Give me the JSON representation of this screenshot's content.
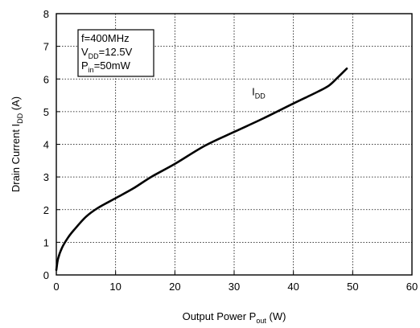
{
  "chart_data": {
    "type": "line",
    "xlabel": {
      "main": "Output Power P",
      "sub": "out",
      "unit": " (W)"
    },
    "ylabel": {
      "main": "Drain Current I",
      "sub": "DD",
      "unit": " (A)"
    },
    "xlim": [
      0,
      60
    ],
    "ylim": [
      0,
      8
    ],
    "x_ticks": [
      0,
      10,
      20,
      30,
      40,
      50,
      60
    ],
    "y_ticks": [
      0,
      1,
      2,
      3,
      4,
      5,
      6,
      7,
      8
    ],
    "grid": true,
    "conditions": [
      {
        "main": "f=400MHz",
        "sub": "",
        "tail": ""
      },
      {
        "main": "V",
        "sub": "DD",
        "tail": "=12.5V"
      },
      {
        "main": "P",
        "sub": "in",
        "tail": "=50mW"
      }
    ],
    "series": [
      {
        "name": {
          "main": "I",
          "sub": "DD"
        },
        "x": [
          0,
          0.3,
          1,
          2,
          3,
          5,
          7,
          10,
          13,
          16,
          20,
          25,
          30,
          35,
          40,
          44,
          46,
          47.5,
          49
        ],
        "y": [
          0.15,
          0.5,
          0.85,
          1.15,
          1.38,
          1.78,
          2.05,
          2.35,
          2.65,
          3.0,
          3.4,
          3.95,
          4.38,
          4.8,
          5.25,
          5.6,
          5.8,
          6.05,
          6.32
        ]
      }
    ],
    "series_label_at": {
      "x": 33,
      "y": 5.5
    }
  }
}
